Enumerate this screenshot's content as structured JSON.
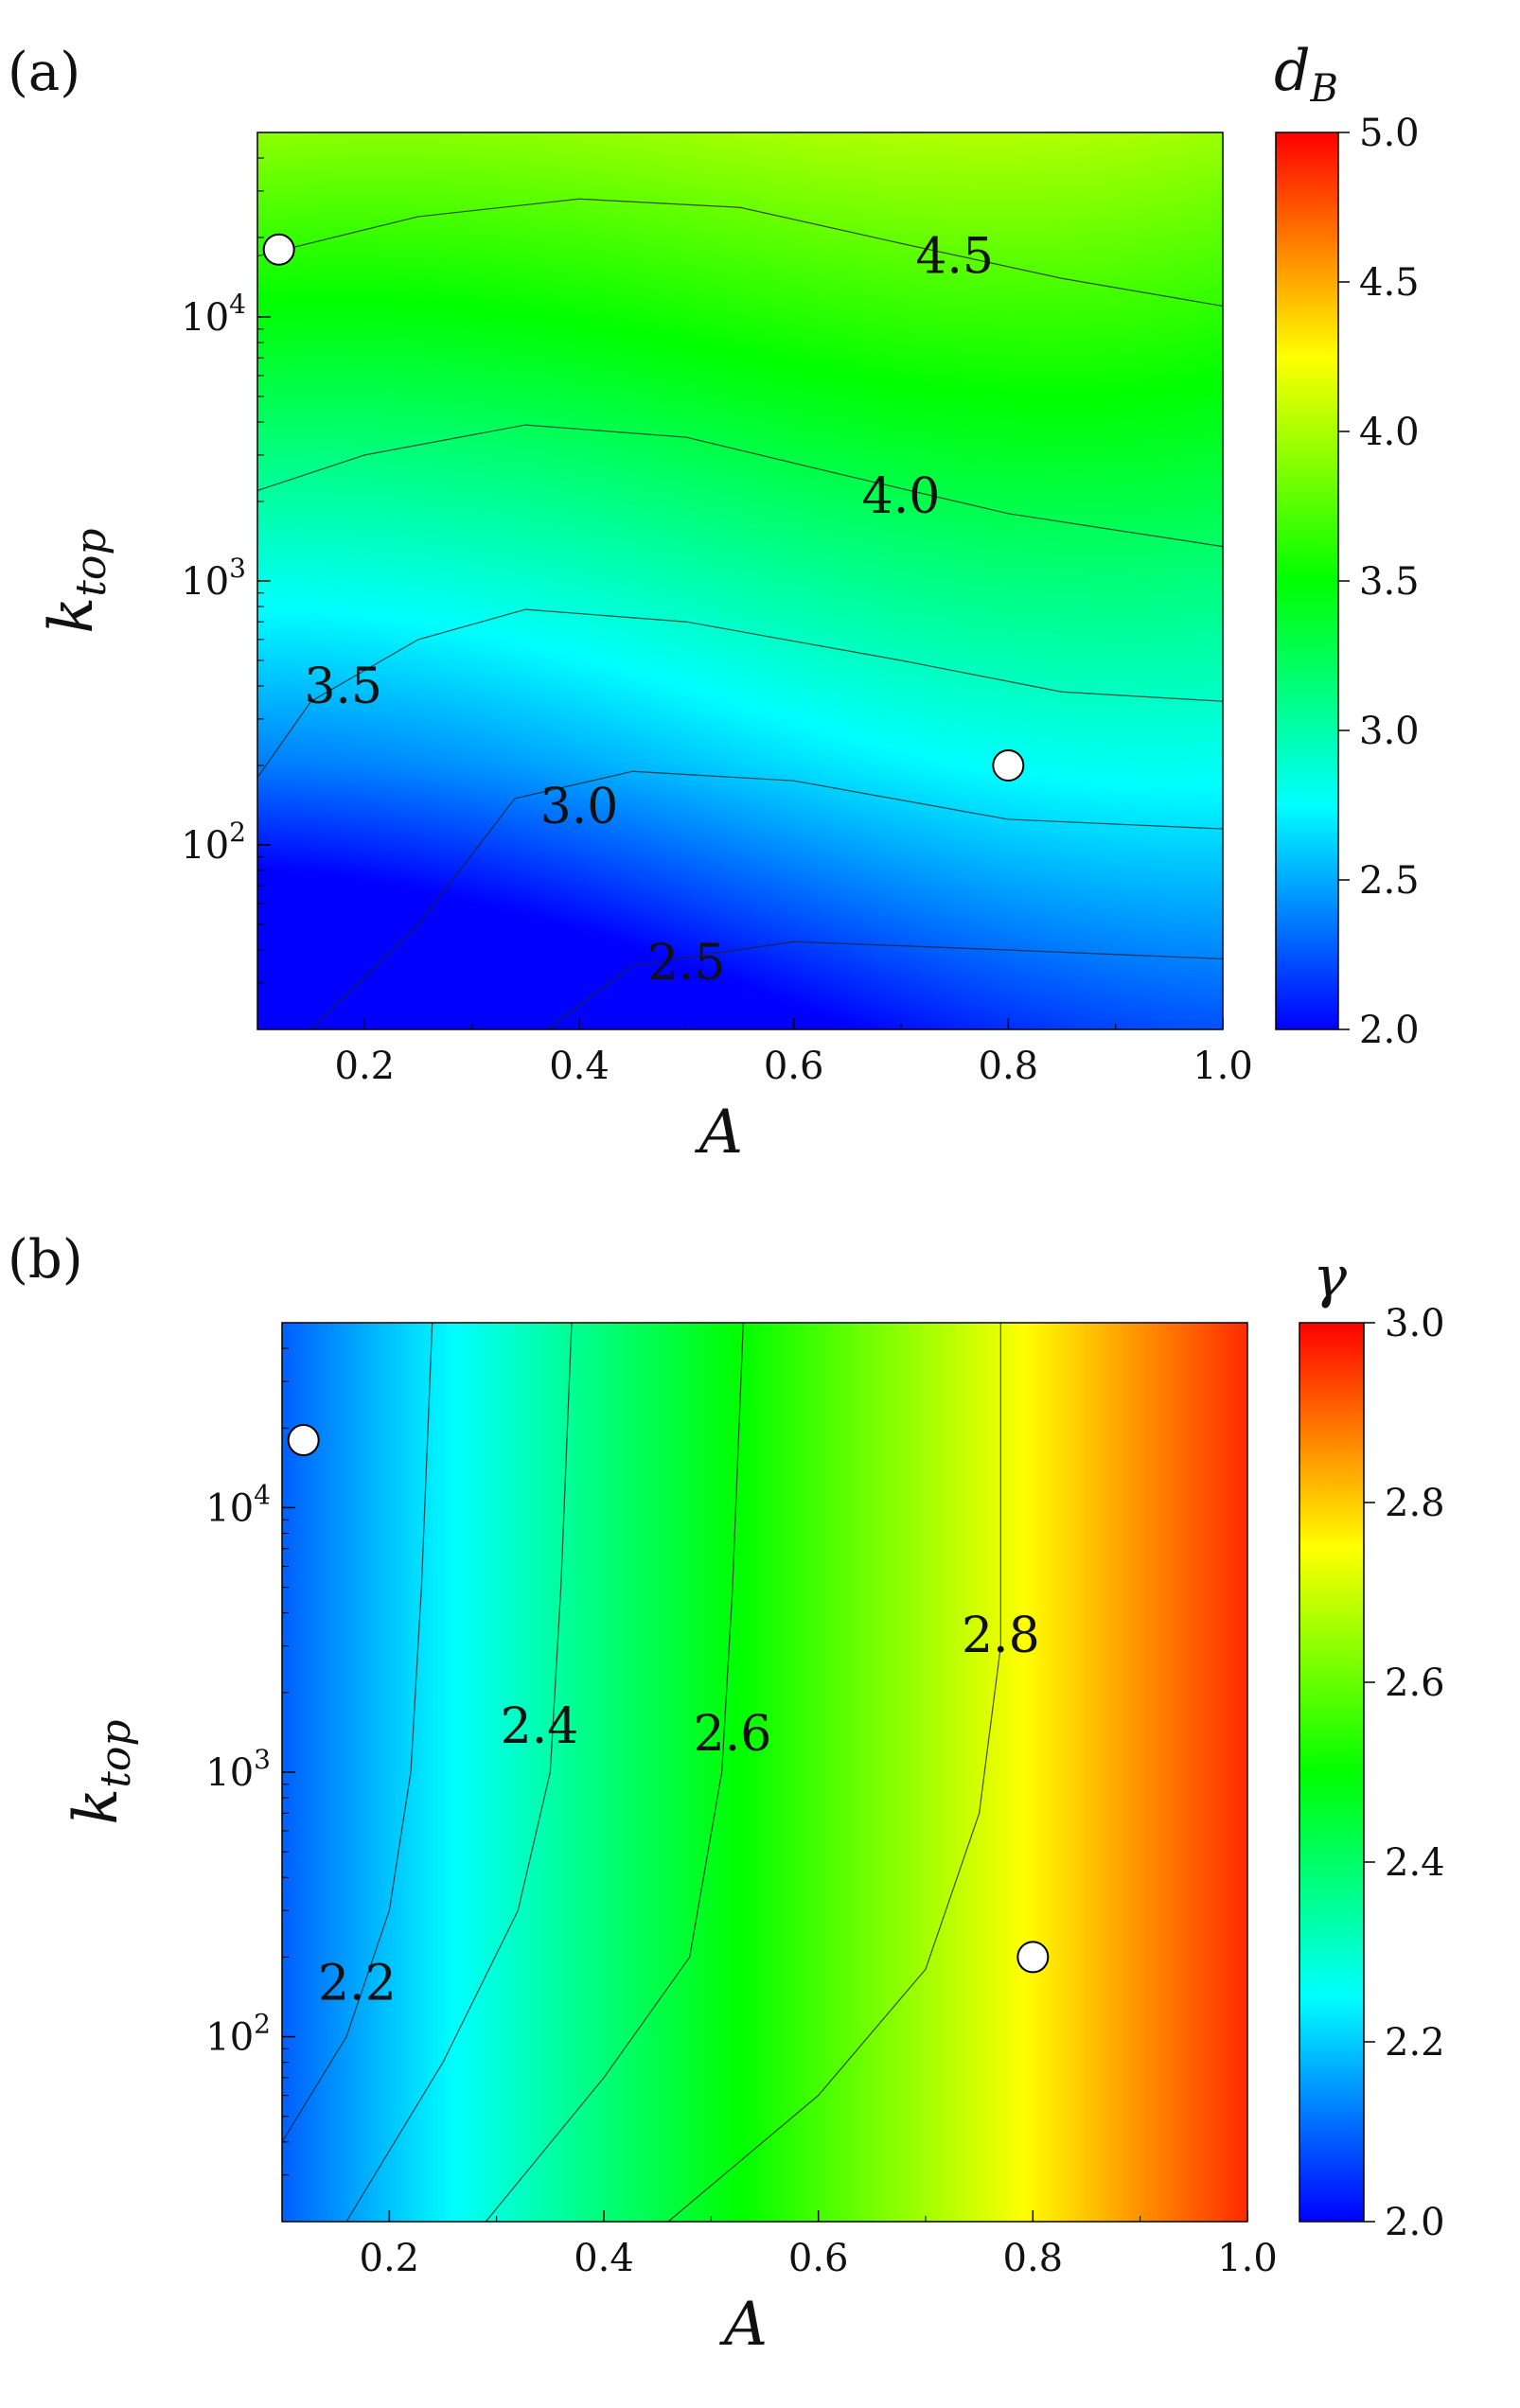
{
  "chart_data": [
    {
      "type": "heatmap",
      "panel_label": "(a)",
      "xlabel": "A",
      "ylabel_base": "k",
      "ylabel_sub": "top",
      "colorbar_title_base": "d",
      "colorbar_title_sub": "B",
      "xlim": [
        0.1,
        1.0
      ],
      "ylim": [
        20,
        50000
      ],
      "yscale": "log",
      "x_ticks": [
        "0.2",
        "0.4",
        "0.6",
        "0.8",
        "1.0"
      ],
      "y_ticks": [
        "10",
        "10",
        "10"
      ],
      "y_tick_exponents": [
        "2",
        "3",
        "4"
      ],
      "colorbar_range": [
        2.0,
        5.0
      ],
      "colorbar_ticks": [
        "2.0",
        "2.5",
        "3.0",
        "3.5",
        "4.0",
        "4.5",
        "5.0"
      ],
      "colormap": [
        "#0000ff",
        "#00ffff",
        "#00ff00",
        "#ffff00",
        "#ff0000"
      ],
      "contours": [
        {
          "level": "2.5",
          "points": [
            [
              0.37,
              20
            ],
            [
              0.45,
              35
            ],
            [
              0.6,
              43
            ],
            [
              0.8,
              40
            ],
            [
              1.0,
              37
            ]
          ],
          "label_at": [
            0.5,
            36
          ]
        },
        {
          "level": "3.0",
          "points": [
            [
              0.15,
              20
            ],
            [
              0.25,
              50
            ],
            [
              0.34,
              150
            ],
            [
              0.45,
              190
            ],
            [
              0.6,
              175
            ],
            [
              0.8,
              125
            ],
            [
              1.0,
              115
            ]
          ],
          "label_at": [
            0.4,
            140
          ]
        },
        {
          "level": "3.5",
          "points": [
            [
              0.1,
              180
            ],
            [
              0.15,
              350
            ],
            [
              0.25,
              600
            ],
            [
              0.35,
              780
            ],
            [
              0.5,
              700
            ],
            [
              0.7,
              500
            ],
            [
              0.85,
              380
            ],
            [
              1.0,
              350
            ]
          ],
          "label_at": [
            0.18,
            400
          ]
        },
        {
          "level": "4.0",
          "points": [
            [
              0.1,
              2200
            ],
            [
              0.2,
              3000
            ],
            [
              0.35,
              3900
            ],
            [
              0.5,
              3500
            ],
            [
              0.65,
              2500
            ],
            [
              0.8,
              1800
            ],
            [
              1.0,
              1350
            ]
          ],
          "label_at": [
            0.7,
            2100
          ]
        },
        {
          "level": "4.5",
          "points": [
            [
              0.1,
              17000
            ],
            [
              0.25,
              24000
            ],
            [
              0.4,
              28000
            ],
            [
              0.55,
              26000
            ],
            [
              0.7,
              19000
            ],
            [
              0.85,
              14000
            ],
            [
              1.0,
              11000
            ]
          ],
          "label_at": [
            0.75,
            17000
          ]
        }
      ],
      "field": {
        "a": 2.0,
        "b": 0.75,
        "c": -0.3,
        "d": -0.18,
        "e": 0.5
      },
      "markers": [
        [
          0.12,
          18000
        ],
        [
          0.8,
          200
        ]
      ]
    },
    {
      "type": "heatmap",
      "panel_label": "(b)",
      "xlabel": "A",
      "ylabel_base": "k",
      "ylabel_sub": "top",
      "colorbar_title_base": "γ",
      "colorbar_title_sub": "",
      "xlim": [
        0.1,
        1.0
      ],
      "ylim": [
        20,
        50000
      ],
      "yscale": "log",
      "x_ticks": [
        "0.2",
        "0.4",
        "0.6",
        "0.8",
        "1.0"
      ],
      "y_ticks": [
        "10",
        "10",
        "10"
      ],
      "y_tick_exponents": [
        "2",
        "3",
        "4"
      ],
      "colorbar_range": [
        2.0,
        3.0
      ],
      "colorbar_ticks": [
        "2.0",
        "2.2",
        "2.4",
        "2.6",
        "2.8",
        "3.0"
      ],
      "colormap": [
        "#0000ff",
        "#00ffff",
        "#00ff00",
        "#ffff00",
        "#ff0000"
      ],
      "contours": [
        {
          "level": "2.2",
          "points": [
            [
              0.1,
              40
            ],
            [
              0.16,
              100
            ],
            [
              0.2,
              300
            ],
            [
              0.22,
              1000
            ],
            [
              0.23,
              5000
            ],
            [
              0.24,
              50000
            ]
          ],
          "label_at": [
            0.17,
            160
          ]
        },
        {
          "level": "2.4",
          "points": [
            [
              0.16,
              20
            ],
            [
              0.25,
              80
            ],
            [
              0.32,
              300
            ],
            [
              0.35,
              1000
            ],
            [
              0.36,
              5000
            ],
            [
              0.37,
              50000
            ]
          ],
          "label_at": [
            0.34,
            1500
          ]
        },
        {
          "level": "2.6",
          "points": [
            [
              0.29,
              20
            ],
            [
              0.4,
              70
            ],
            [
              0.48,
              200
            ],
            [
              0.51,
              1000
            ],
            [
              0.52,
              5000
            ],
            [
              0.53,
              50000
            ]
          ],
          "label_at": [
            0.52,
            1400
          ]
        },
        {
          "level": "2.8",
          "points": [
            [
              0.46,
              20
            ],
            [
              0.6,
              60
            ],
            [
              0.7,
              180
            ],
            [
              0.75,
              700
            ],
            [
              0.77,
              3000
            ],
            [
              0.77,
              50000
            ]
          ],
          "label_at": [
            0.77,
            3300
          ]
        }
      ],
      "field": {
        "a": 1.95,
        "b": 1.05,
        "c": 0.04,
        "d": 0.0,
        "e": 0.0
      },
      "markers": [
        [
          0.12,
          18000
        ],
        [
          0.8,
          200
        ]
      ]
    }
  ]
}
